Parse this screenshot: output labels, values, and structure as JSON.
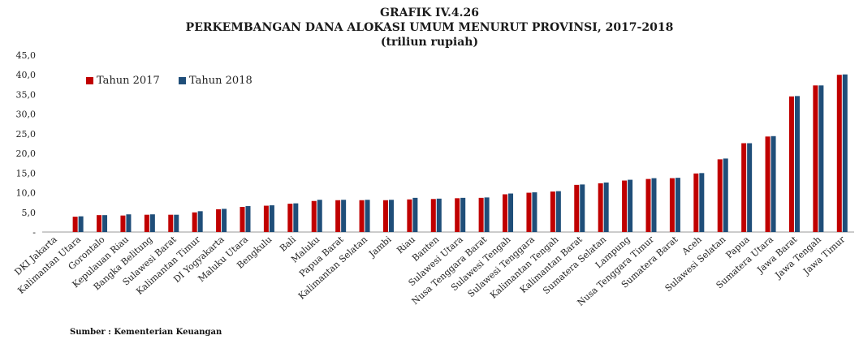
{
  "title_line1": "GRAFIK IV.4.26",
  "title_line2": "PERKEMBANGAN DANA ALOKASI UMUM MENURUT PROVINSI, 2017-2018",
  "title_line3": "(triliun rupiah)",
  "source": "Sumber : Kementerian Keuangan",
  "colors": {
    "series_2017": "#c00000",
    "series_2018": "#1f4e79",
    "axis": "#888888"
  },
  "chart_data": {
    "type": "bar",
    "title": "PERKEMBANGAN DANA ALOKASI UMUM MENURUT PROVINSI, 2017-2018",
    "ylabel": "",
    "xlabel": "",
    "ylim": [
      0,
      45
    ],
    "yticks": [
      "-",
      "5,0",
      "10,0",
      "15,0",
      "20,0",
      "25,0",
      "30,0",
      "35,0",
      "40,0",
      "45,0"
    ],
    "legend_position": "top-left",
    "grid": false,
    "categories": [
      "DKI Jakarta",
      "Kalimantan Utara",
      "Gorontalo",
      "Kepulauan Riau",
      "Bangka Belitung",
      "Sulawesi Barat",
      "Kalimantan Timur",
      "DI Yogyakarta",
      "Maluku Utara",
      "Bengkulu",
      "Bali",
      "Maluku",
      "Papua Barat",
      "Kalimantan Selatan",
      "Jambi",
      "Riau",
      "Banten",
      "Sulawesi Utara",
      "Nusa Tenggara Barat",
      "Sulawesi Tengah",
      "Sulawesi Tenggara",
      "Kalimantan Tengah",
      "Kalimantan Barat",
      "Sumatera Selatan",
      "Lampung",
      "Nusa Tenggara Timur",
      "Sumatera Barat",
      "Aceh",
      "Sulawesi Selatan",
      "Papua",
      "Sumatera Utara",
      "Jawa Barat",
      "Jawa Tengah",
      "Jawa Timur"
    ],
    "series": [
      {
        "name": "Tahun 2017",
        "values": [
          0,
          3.9,
          4.3,
          4.2,
          4.4,
          4.4,
          5.0,
          5.8,
          6.4,
          6.7,
          7.2,
          7.9,
          8.1,
          8.1,
          8.1,
          8.3,
          8.4,
          8.6,
          8.7,
          9.6,
          10.0,
          10.3,
          12.0,
          12.4,
          13.1,
          13.5,
          13.7,
          14.9,
          18.5,
          22.6,
          24.3,
          34.5,
          37.3,
          40.0
        ]
      },
      {
        "name": "Tahun 2018",
        "values": [
          0,
          4.0,
          4.3,
          4.5,
          4.5,
          4.4,
          5.3,
          5.9,
          6.6,
          6.8,
          7.3,
          8.2,
          8.2,
          8.2,
          8.2,
          8.7,
          8.5,
          8.7,
          8.8,
          9.8,
          10.1,
          10.4,
          12.1,
          12.6,
          13.3,
          13.7,
          13.8,
          15.0,
          18.7,
          22.6,
          24.4,
          34.6,
          37.3,
          40.1
        ]
      }
    ]
  }
}
